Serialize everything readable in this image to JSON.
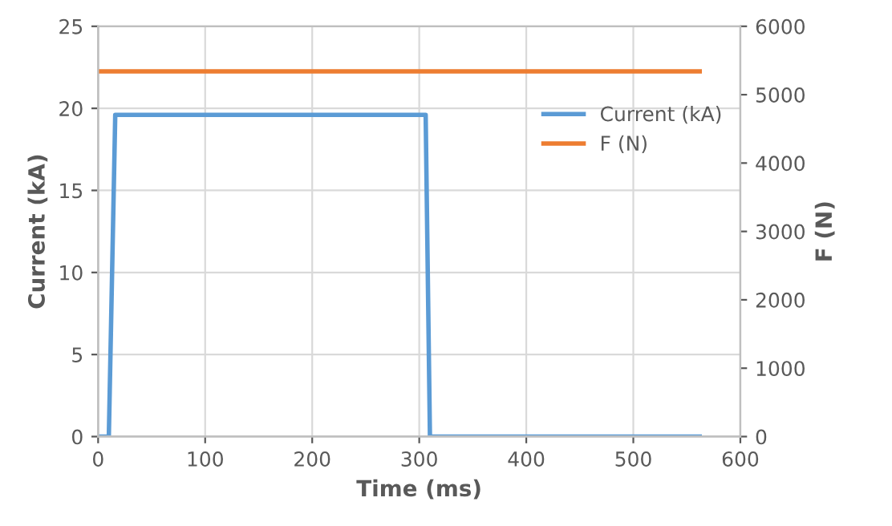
{
  "chart_data": {
    "type": "line",
    "xlabel": "Time (ms)",
    "ylabel": "Current (kA)",
    "y2label": "F (N)",
    "xlim": [
      0,
      600
    ],
    "xticks": [
      0,
      100,
      200,
      300,
      400,
      500,
      600
    ],
    "ylim": [
      0,
      25
    ],
    "yticks": [
      0,
      5,
      10,
      15,
      20,
      25
    ],
    "y2lim": [
      0,
      6000
    ],
    "y2ticks": [
      0,
      1000,
      2000,
      3000,
      4000,
      5000,
      6000
    ],
    "grid": true,
    "legend": "upper right",
    "series": [
      {
        "name": "Current (kA)",
        "color": "#5b9bd5",
        "x": [
          0,
          10,
          16,
          306,
          310,
          562
        ],
        "values": [
          0,
          0,
          19.6,
          19.6,
          0,
          0
        ]
      },
      {
        "name": "F (N)",
        "color": "#ed7d31",
        "axis": "y2",
        "x": [
          0,
          562
        ],
        "values": [
          5340,
          5340
        ]
      }
    ]
  }
}
